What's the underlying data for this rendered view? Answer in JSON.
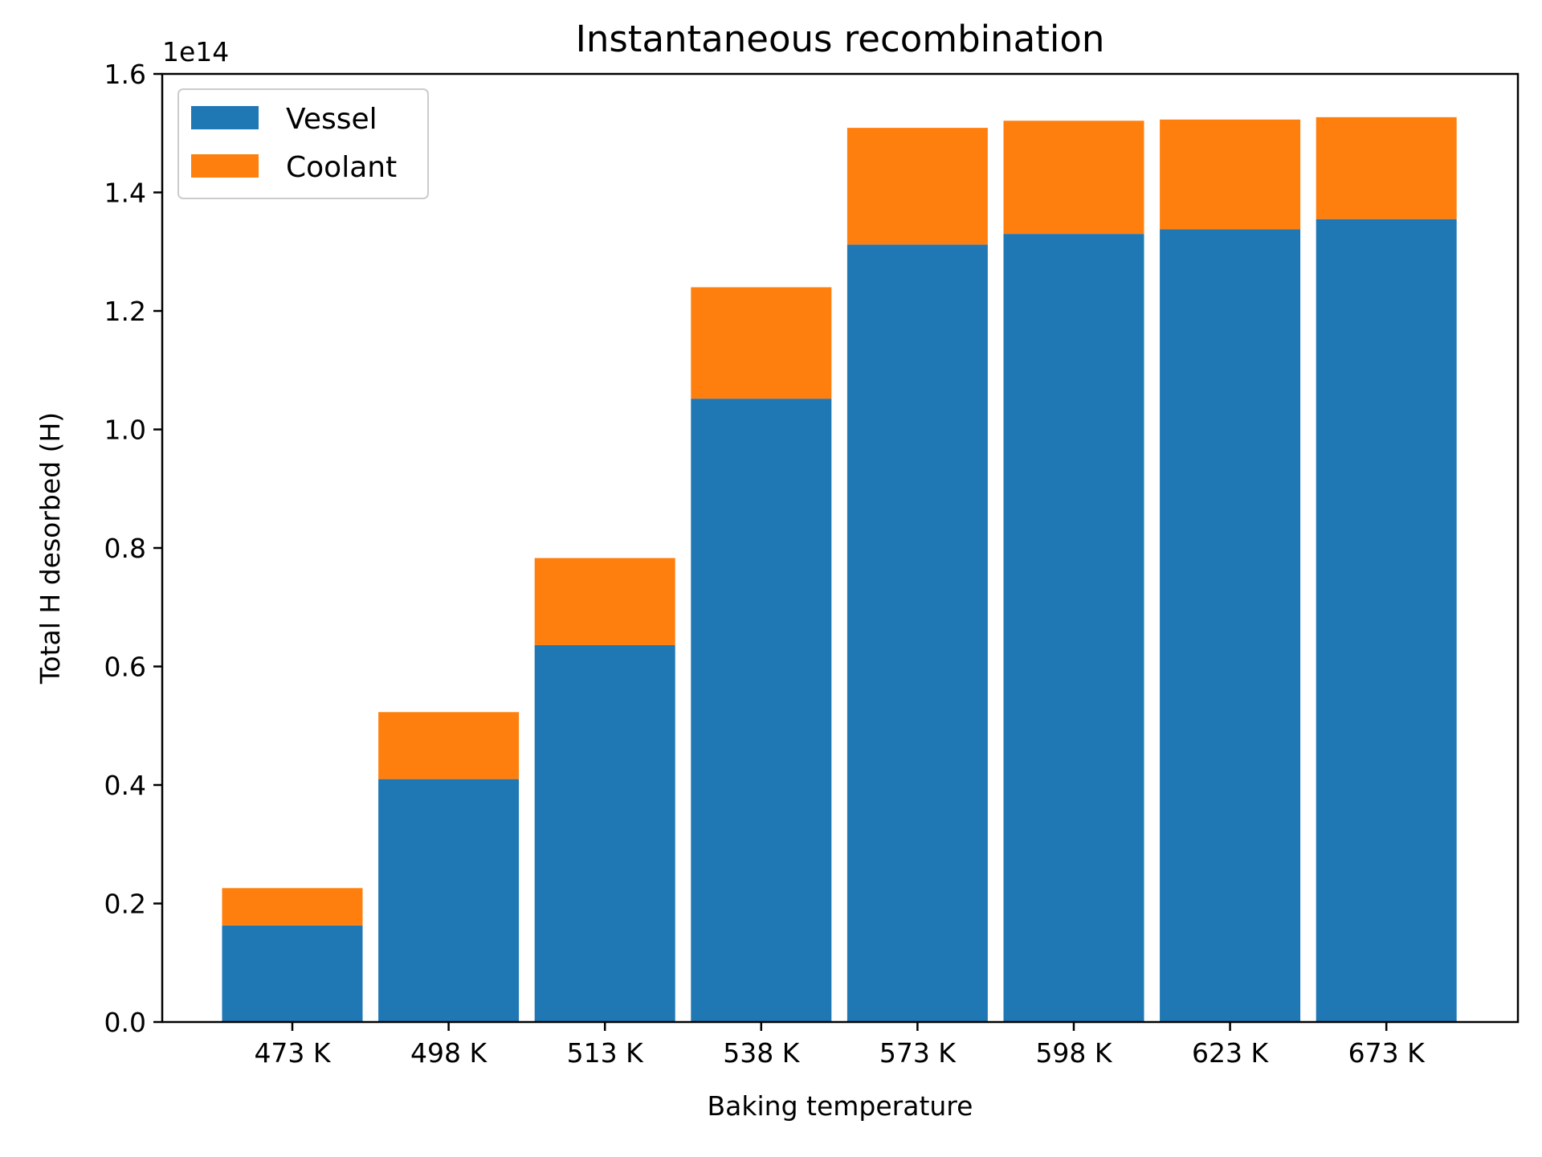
{
  "chart_data": {
    "type": "bar",
    "stacked": true,
    "title": "Instantaneous recombination",
    "xlabel": "Baking temperature",
    "ylabel": "Total H desorbed (H)",
    "y_offset_label": "1e14",
    "y_scale": 100000000000000.0,
    "ylim": [
      0,
      1.6
    ],
    "yticks": [
      "0.0",
      "0.2",
      "0.4",
      "0.6",
      "0.8",
      "1.0",
      "1.2",
      "1.4",
      "1.6"
    ],
    "categories": [
      "473 K",
      "498 K",
      "513 K",
      "538 K",
      "573 K",
      "598 K",
      "623 K",
      "673 K"
    ],
    "series": [
      {
        "name": "Vessel",
        "color": "#1f77b4",
        "values": [
          0.163,
          0.41,
          0.636,
          1.052,
          1.312,
          1.33,
          1.338,
          1.355
        ]
      },
      {
        "name": "Coolant",
        "color": "#ff7f0e",
        "values": [
          0.063,
          0.113,
          0.147,
          0.188,
          0.197,
          0.191,
          0.185,
          0.172
        ]
      }
    ],
    "grid": false,
    "legend_position": "top-left"
  }
}
